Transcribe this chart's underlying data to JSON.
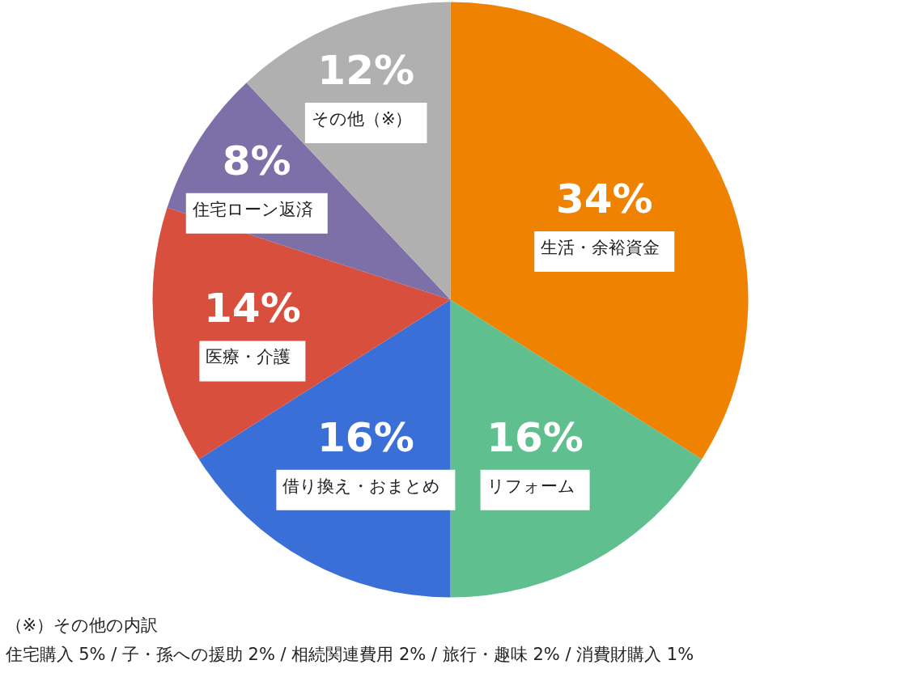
{
  "chart_data": {
    "type": "pie",
    "categories": [
      "生活・余裕資金",
      "リフォーム",
      "借り換え・おまとめ",
      "医療・介護",
      "住宅ローン返済",
      "その他（※）"
    ],
    "values": [
      34,
      16,
      16,
      14,
      8,
      12
    ],
    "colors": [
      "#ef8200",
      "#5fbf8f",
      "#3a6fd8",
      "#d94f3d",
      "#7d6fa8",
      "#b0b0b0"
    ],
    "value_labels": [
      "34%",
      "16%",
      "16%",
      "14%",
      "8%",
      "12%"
    ],
    "annotations": [
      "（※）その他の内訳",
      "住宅購入 5% / 子・孫への援助 2% / 相続関連費用 2% / 旅行・趣味 2% / 消費財購入 1%"
    ]
  }
}
